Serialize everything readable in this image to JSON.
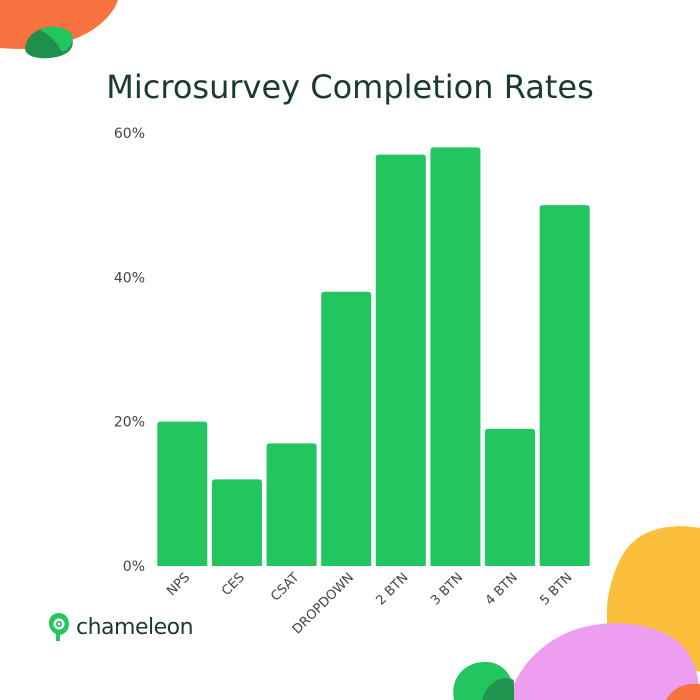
{
  "chart_data": {
    "type": "bar",
    "title": "Microsurvey Completion Rates",
    "categories": [
      "NPS",
      "CES",
      "CSAT",
      "DROPDOWN",
      "2 BTN",
      "3 BTN",
      "4 BTN",
      "5 BTN"
    ],
    "values": [
      20,
      12,
      17,
      38,
      57,
      58,
      19,
      50
    ],
    "value_unit": "%",
    "ylim": [
      0,
      60
    ],
    "yticks": [
      "0%",
      "20%",
      "40%",
      "60%"
    ],
    "xlabel": "",
    "ylabel": "",
    "grid": false,
    "bar_color": "#22c55e"
  },
  "brand": {
    "name": "chameleon",
    "logo_icon": "chameleon-logo-icon",
    "color": "#22c55e"
  },
  "colors": {
    "title": "#1a3a32",
    "blob_orange": "#f97340",
    "blob_green": "#22c55e",
    "blob_yellow": "#fbbf3c",
    "blob_pink": "#ee9ef0"
  }
}
